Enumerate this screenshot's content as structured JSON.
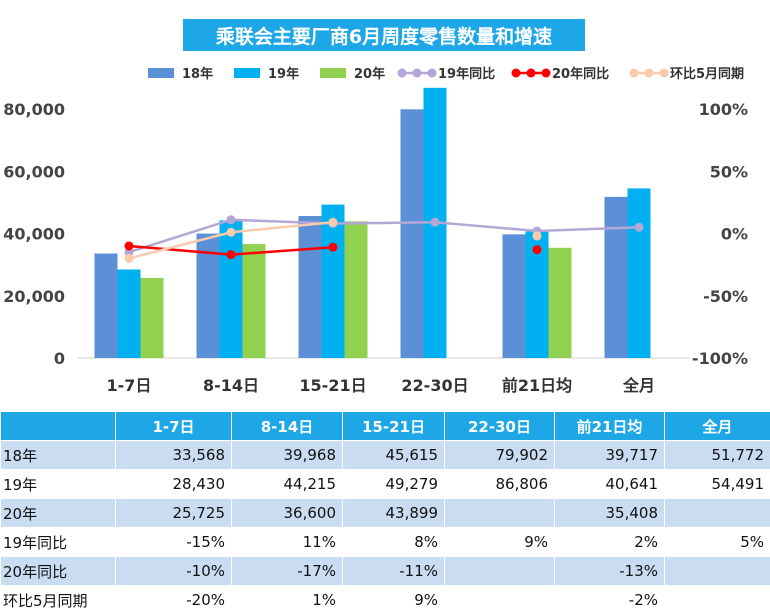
{
  "chart_data": {
    "type": "bar",
    "title": "乘联会主要厂商6月周度零售数量和增速",
    "categories": [
      "1-7日",
      "8-14日",
      "15-21日",
      "22-30日",
      "前21日均",
      "全月"
    ],
    "series": [
      {
        "name": "18年",
        "kind": "bar",
        "color": "#5b8fd6",
        "values": [
          33568,
          39968,
          45615,
          79902,
          39717,
          51772
        ]
      },
      {
        "name": "19年",
        "kind": "bar",
        "color": "#00b0f0",
        "values": [
          28430,
          44215,
          49279,
          86806,
          40641,
          54491
        ]
      },
      {
        "name": "20年",
        "kind": "bar",
        "color": "#92d050",
        "values": [
          25725,
          36600,
          43899,
          null,
          35408,
          null
        ]
      },
      {
        "name": "19年同比",
        "kind": "line",
        "axis": "right",
        "color": "#b4a7d6",
        "values": [
          -15,
          11,
          8,
          9,
          2,
          5
        ]
      },
      {
        "name": "20年同比",
        "kind": "line",
        "axis": "right",
        "color": "#ff0000",
        "values": [
          -10,
          -17,
          -11,
          null,
          -13,
          null
        ]
      },
      {
        "name": "环比5月同期",
        "kind": "line",
        "axis": "right",
        "color": "#f8cbad",
        "values": [
          -20,
          1,
          9,
          null,
          -2,
          null
        ]
      }
    ],
    "y_left": {
      "range": [
        0,
        80000
      ],
      "ticks": [
        "0",
        "20,000",
        "40,000",
        "60,000",
        "80,000"
      ]
    },
    "y_right": {
      "range": [
        -100,
        100
      ],
      "ticks": [
        "-100%",
        "-50%",
        "0%",
        "50%",
        "100%"
      ]
    },
    "grid": false,
    "legend": "top"
  },
  "table": {
    "headers": [
      "",
      "1-7日",
      "8-14日",
      "15-21日",
      "22-30日",
      "前21日均",
      "全月"
    ],
    "rows": [
      {
        "label": "18年",
        "cells": [
          "33,568",
          "39,968",
          "45,615",
          "79,902",
          "39,717",
          "51,772"
        ]
      },
      {
        "label": "19年",
        "cells": [
          "28,430",
          "44,215",
          "49,279",
          "86,806",
          "40,641",
          "54,491"
        ]
      },
      {
        "label": "20年",
        "cells": [
          "25,725",
          "36,600",
          "43,899",
          "",
          "35,408",
          ""
        ]
      },
      {
        "label": "19年同比",
        "cells": [
          "-15%",
          "11%",
          "8%",
          "9%",
          "2%",
          "5%"
        ]
      },
      {
        "label": "20年同比",
        "cells": [
          "-10%",
          "-17%",
          "-11%",
          "",
          "-13%",
          ""
        ]
      },
      {
        "label": "环比5月同期",
        "cells": [
          "-20%",
          "1%",
          "9%",
          "",
          "-2%",
          ""
        ]
      }
    ]
  }
}
